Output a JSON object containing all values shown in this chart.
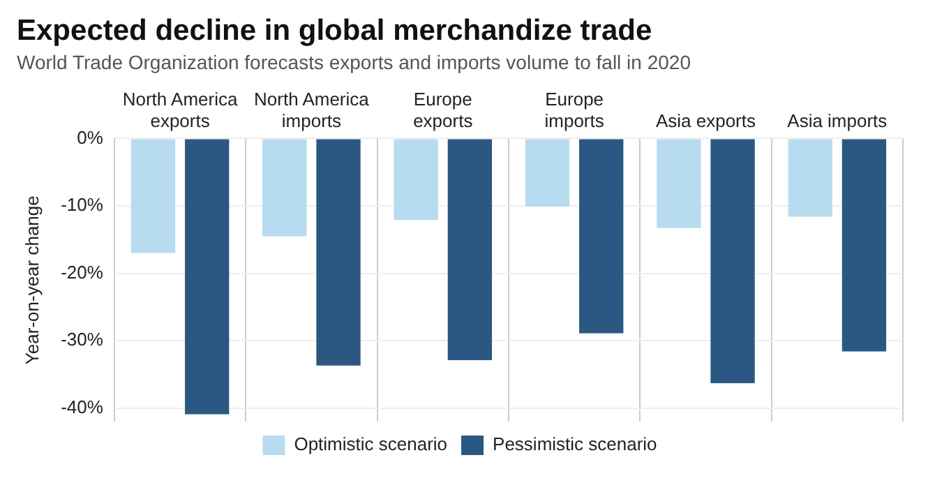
{
  "chart_data": {
    "type": "bar",
    "title": "Expected decline in global merchandize trade",
    "subtitle": "World Trade Organization forecasts exports and imports volume to fall in 2020",
    "ylabel": "Year-on-year change",
    "categories": [
      "North America exports",
      "North America imports",
      "Europe exports",
      "Europe imports",
      "Asia exports",
      "Asia imports"
    ],
    "series": [
      {
        "name": "Optimistic scenario",
        "color": "#b8dcef",
        "values": [
          -17,
          -14.5,
          -12.1,
          -10.1,
          -13.3,
          -11.6
        ]
      },
      {
        "name": "Pessimistic scenario",
        "color": "#2b5882",
        "values": [
          -40.9,
          -33.7,
          -32.9,
          -28.9,
          -36.3,
          -31.6
        ]
      }
    ],
    "ylim": [
      -42,
      0
    ],
    "yticks": [
      {
        "value": 0,
        "label": "0%"
      },
      {
        "value": -10,
        "label": "-10%"
      },
      {
        "value": -20,
        "label": "-20%"
      },
      {
        "value": -30,
        "label": "-30%"
      },
      {
        "value": -40,
        "label": "-40%"
      }
    ],
    "grid": true,
    "legend": "bottom"
  }
}
